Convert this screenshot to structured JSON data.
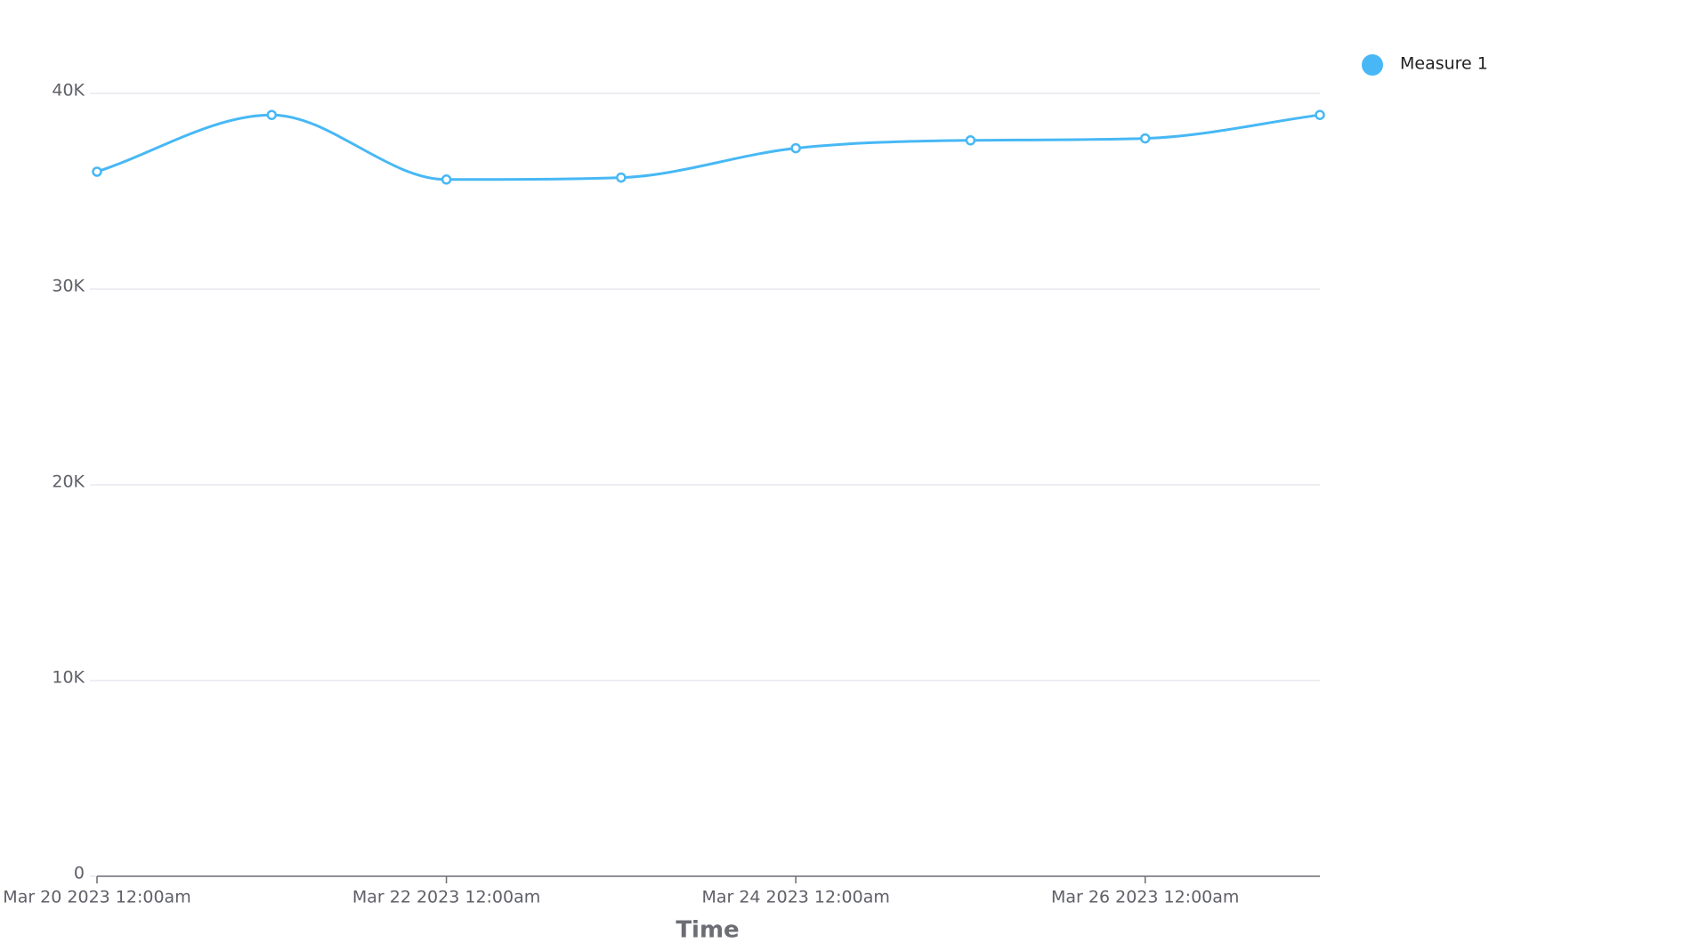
{
  "chart_data": {
    "type": "line",
    "x_label": "Time",
    "x": [
      "2023-03-20",
      "2023-03-21",
      "2023-03-22",
      "2023-03-23",
      "2023-03-24",
      "2023-03-25",
      "2023-03-26",
      "2023-03-27"
    ],
    "series": [
      {
        "name": "Measure 1",
        "color": "#47b8f5",
        "values": [
          36000,
          38900,
          35600,
          35700,
          37200,
          37600,
          37700,
          38900
        ]
      }
    ],
    "xlim": [
      "2023-03-20",
      "2023-03-27"
    ],
    "xticks": [
      {
        "value": "2023-03-20",
        "label": "Mar 20 2023 12:00am"
      },
      {
        "value": "2023-03-22",
        "label": "Mar 22 2023 12:00am"
      },
      {
        "value": "2023-03-24",
        "label": "Mar 24 2023 12:00am"
      },
      {
        "value": "2023-03-26",
        "label": "Mar 26 2023 12:00am"
      }
    ],
    "ylim": [
      0,
      40000
    ],
    "yticks": [
      0,
      {
        "value": 10000,
        "label": "10K"
      },
      {
        "value": 20000,
        "label": "20K"
      },
      {
        "value": 30000,
        "label": "30K"
      },
      {
        "value": 40000,
        "label": "40K"
      }
    ],
    "grid": true,
    "legend": "top-right"
  }
}
